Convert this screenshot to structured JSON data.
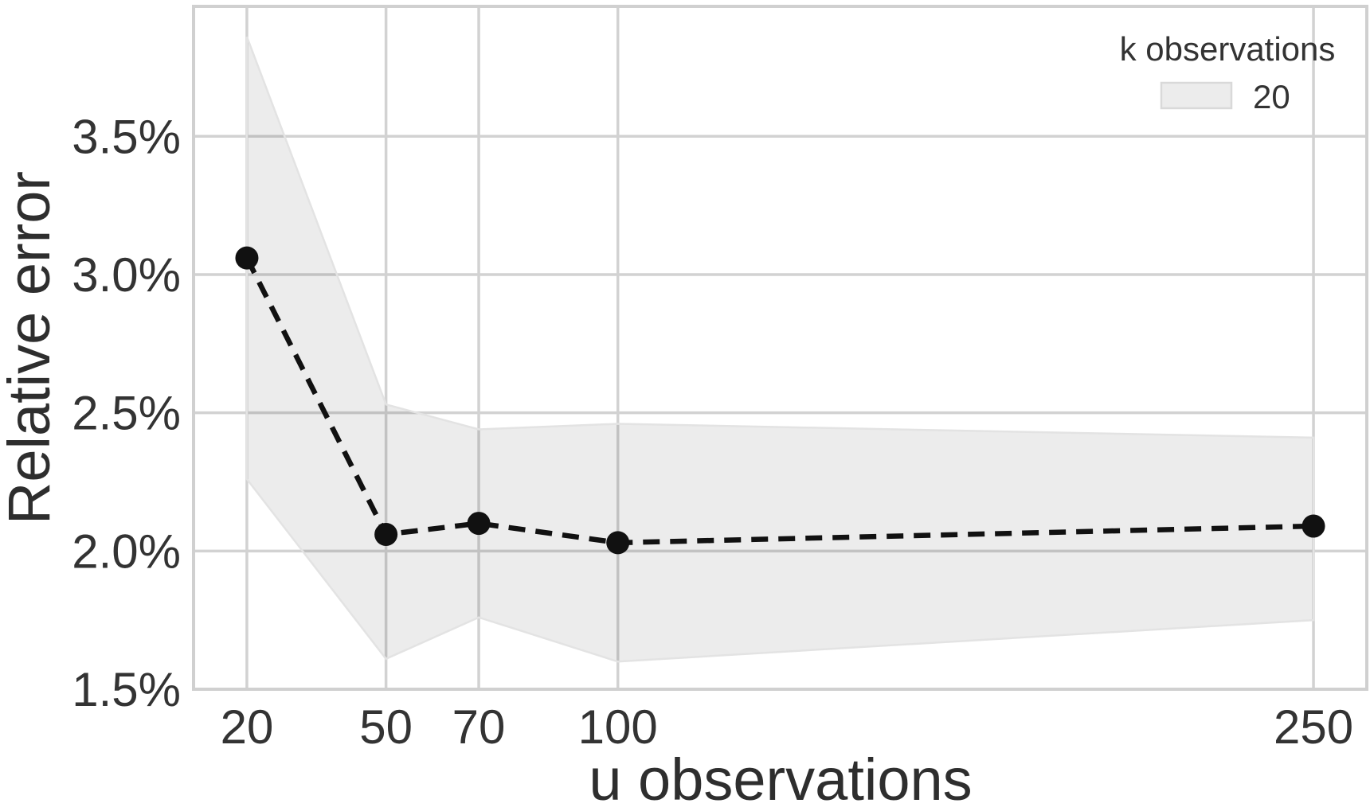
{
  "figure": {
    "xlabel": "u observations",
    "ylabel": "Relative error",
    "legend": {
      "title": "k observations",
      "entries": [
        {
          "label": "20",
          "swatch_fill": "#ececec",
          "swatch_border": "#d9d9d9"
        }
      ],
      "position": "upper right"
    }
  },
  "chart_data": {
    "type": "line",
    "title": "",
    "xlabel": "u observations",
    "ylabel": "Relative error",
    "x": [
      20,
      50,
      70,
      100,
      250
    ],
    "series": [
      {
        "name": "k observations = 20",
        "values": [
          3.06,
          2.06,
          2.1,
          2.03,
          2.09
        ],
        "band_upper": [
          3.86,
          2.53,
          2.44,
          2.46,
          2.41
        ],
        "band_lower": [
          2.26,
          1.61,
          1.76,
          1.6,
          1.75
        ],
        "line_style": "dashed",
        "marker": "circle",
        "color": "#111111"
      }
    ],
    "x_ticks": [
      20,
      50,
      70,
      100,
      250
    ],
    "x_tick_labels": [
      "20",
      "50",
      "70",
      "100",
      "250"
    ],
    "y_ticks": [
      1.5,
      2.0,
      2.5,
      3.0,
      3.5
    ],
    "y_tick_labels": [
      "1.5%",
      "2.0%",
      "2.5%",
      "3.0%",
      "3.5%"
    ],
    "xlim": [
      8.5,
      261.5
    ],
    "ylim": [
      1.5,
      3.97
    ],
    "grid": true,
    "legend_position": "upper right",
    "colors": {
      "grid": "#d2d2d2",
      "spine": "#d0d0d0",
      "band_fill": "rgba(0,0,0,0.075)",
      "band_edge": "#e3e3e3",
      "line": "#111111",
      "tick_text": "#333333",
      "label_text": "#2e2e2e"
    }
  }
}
